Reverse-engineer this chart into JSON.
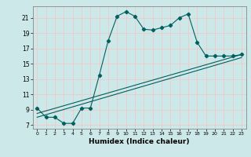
{
  "xlabel": "Humidex (Indice chaleur)",
  "bg_color": "#cce8e8",
  "grid_color": "#f0c8c8",
  "line_color": "#006060",
  "xlim": [
    -0.5,
    23.5
  ],
  "ylim": [
    6.5,
    22.5
  ],
  "yticks": [
    7,
    9,
    11,
    13,
    15,
    17,
    19,
    21
  ],
  "xticks": [
    0,
    1,
    2,
    3,
    4,
    5,
    6,
    7,
    8,
    9,
    10,
    11,
    12,
    13,
    14,
    15,
    16,
    17,
    18,
    19,
    20,
    21,
    22,
    23
  ],
  "line1_x": [
    0,
    1,
    2,
    3,
    4,
    5,
    6,
    7,
    8,
    9,
    10,
    11,
    12,
    13,
    14,
    15,
    16,
    17,
    18,
    19,
    20,
    21,
    22,
    23
  ],
  "line1_y": [
    9.2,
    8.0,
    8.0,
    7.2,
    7.2,
    9.2,
    9.2,
    13.5,
    18.0,
    21.2,
    21.8,
    21.2,
    19.5,
    19.4,
    19.7,
    20.0,
    21.0,
    21.5,
    17.8,
    16.0,
    16.0,
    16.0,
    16.0,
    16.2
  ],
  "line2_x": [
    0,
    23
  ],
  "line2_y": [
    8.5,
    16.2
  ],
  "line3_x": [
    0,
    23
  ],
  "line3_y": [
    8.0,
    15.8
  ]
}
